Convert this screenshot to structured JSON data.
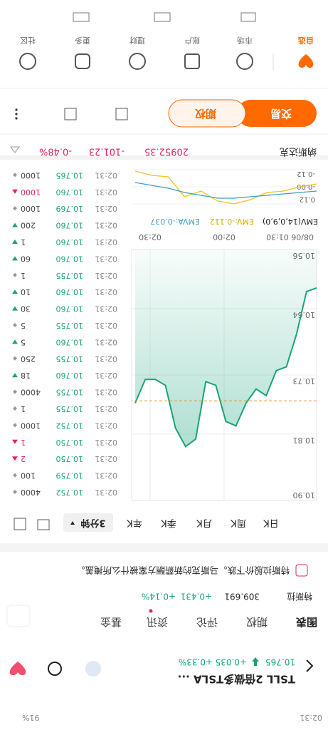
{
  "status": {
    "time": "02:31",
    "battery": "91%"
  },
  "header": {
    "title": "TSLL 2倍做多TSLA ...",
    "price": 10.765,
    "change": "+0.035",
    "pct": "+0.33%"
  },
  "tabs": [
    "图表",
    "期权",
    "评论",
    "资讯",
    "基金"
  ],
  "related": {
    "name": "特斯拉",
    "price": "309.691",
    "change": "+0.431",
    "pct": "+0.14%"
  },
  "news": "特斯拉股价下跌。马斯克的新薪酬方案被什么所掩盖。",
  "timeframes": [
    "日K",
    "周K",
    "月K",
    "季K",
    "年K",
    "3分钟"
  ],
  "chart": {
    "type": "line",
    "color": "#1aa37a",
    "ref_color": "#f08a24",
    "ylim": [
      10.56,
      10.9
    ],
    "yticks": [
      {
        "value": 10.9,
        "label": "10.90"
      },
      {
        "value": 10.81,
        "label": "10.81"
      },
      {
        "value": 10.73,
        "label": "10.73"
      },
      {
        "value": 10.64,
        "label": "10.64"
      },
      {
        "value": 10.56,
        "label": "10.56"
      }
    ],
    "xticks": [
      "08/06 01:30",
      "02:00",
      "02:30"
    ],
    "values": [
      10.612,
      10.617,
      10.675,
      10.719,
      10.724,
      10.758,
      10.749,
      10.768,
      10.799,
      10.793,
      10.744,
      10.739,
      10.817,
      10.827,
      10.802,
      10.744,
      10.736,
      10.736,
      10.768
    ]
  },
  "emv": {
    "label": "EMV(14,0,9,0)",
    "emv_label": "EMV:-0.112",
    "emva_label": "EMVA:-0.037",
    "ylim": [
      -0.12,
      0.12
    ],
    "yticks": [
      0.12,
      {
        "value": 0,
        "label": "-0.00"
      },
      -0.12
    ],
    "series": [
      {
        "name": "EMV",
        "color": "#f2c318",
        "values": [
          -0.02,
          0.0,
          0.03,
          0.04,
          0.09,
          0.12,
          0.1,
          0.03,
          0.07,
          -0.07,
          -0.08,
          -0.11
        ]
      },
      {
        "name": "EMVA",
        "color": "#3aa0c8",
        "values": [
          0.03,
          0.04,
          0.05,
          0.06,
          0.07,
          0.08,
          0.08,
          0.06,
          0.04,
          0.01,
          -0.01,
          -0.03
        ]
      }
    ]
  },
  "trades": [
    {
      "time": "02:31",
      "price": "10.752",
      "volume": "4000",
      "dir": "flat"
    },
    {
      "time": "02:31",
      "price": "10.759",
      "volume": "100",
      "dir": "flat"
    },
    {
      "time": "02:31",
      "price": "10.750",
      "volume": "2",
      "dir": "up"
    },
    {
      "time": "02:31",
      "price": "10.750",
      "volume": "1",
      "dir": "up"
    },
    {
      "time": "02:31",
      "price": "10.752",
      "volume": "1000",
      "dir": "flat"
    },
    {
      "time": "02:31",
      "price": "10.755",
      "volume": "1",
      "dir": "flat"
    },
    {
      "time": "02:31",
      "price": "10.755",
      "volume": "4000",
      "dir": "flat"
    },
    {
      "time": "02:31",
      "price": "10.760",
      "volume": "18",
      "dir": "down"
    },
    {
      "time": "02:31",
      "price": "10.755",
      "volume": "250",
      "dir": "flat"
    },
    {
      "time": "02:31",
      "price": "10.760",
      "volume": "5",
      "dir": "down"
    },
    {
      "time": "02:31",
      "price": "10.755",
      "volume": "5",
      "dir": "flat"
    },
    {
      "time": "02:31",
      "price": "10.760",
      "volume": "30",
      "dir": "down"
    },
    {
      "time": "02:31",
      "price": "10.760",
      "volume": "10",
      "dir": "down"
    },
    {
      "time": "02:31",
      "price": "10.755",
      "volume": "1",
      "dir": "flat"
    },
    {
      "time": "02:31",
      "price": "10.760",
      "volume": "60",
      "dir": "down"
    },
    {
      "time": "02:31",
      "price": "10.760",
      "volume": "1",
      "dir": "down"
    },
    {
      "time": "02:31",
      "price": "10.760",
      "volume": "200",
      "dir": "down"
    },
    {
      "time": "02:31",
      "price": "10.769",
      "volume": "1000",
      "dir": "flat"
    },
    {
      "time": "02:31",
      "price": "10.760",
      "volume": "1000",
      "dir": "up"
    },
    {
      "time": "02:31",
      "price": "10.765",
      "volume": "1000",
      "dir": "flat"
    }
  ],
  "index": {
    "name": "纳斯达克",
    "value": "20952.35",
    "change": "-101.23",
    "pct": "-0.48%"
  },
  "buttons": [
    "交易",
    "期权"
  ],
  "nav": [
    "自选",
    "市场",
    "账户",
    "理财",
    "更多",
    "社区"
  ]
}
